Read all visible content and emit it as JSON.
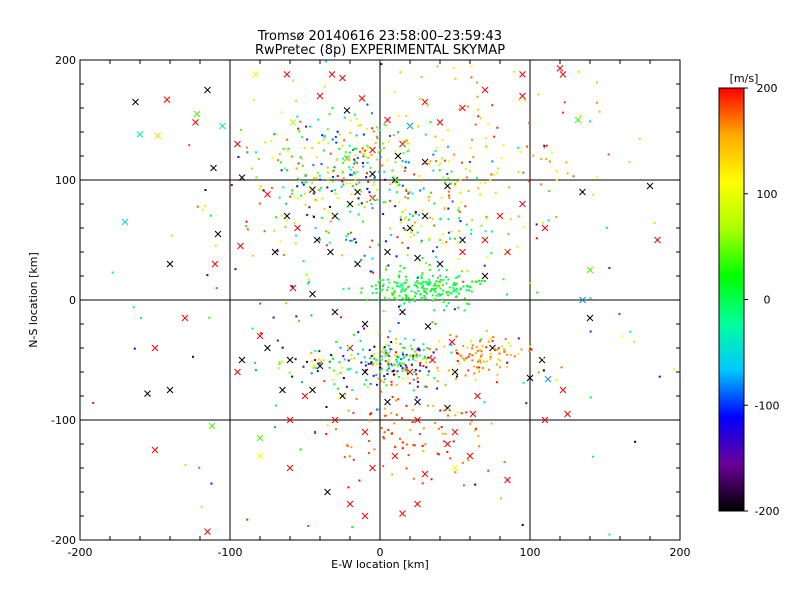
{
  "chart_data": {
    "type": "scatter",
    "title": "Tromsø 20140616 23:58:00–23:59:43",
    "subtitle": "RwPretec (8p) EXPERIMENTAL SKYMAP",
    "xlabel": "E-W location [km]",
    "ylabel": "N-S location [km]",
    "xlim": [
      -200,
      200
    ],
    "ylim": [
      -200,
      200
    ],
    "x_ticks": [
      "-200",
      "-100",
      "0",
      "100",
      "200"
    ],
    "y_ticks": [
      "-200",
      "-100",
      "0",
      "100",
      "200"
    ],
    "grid": true,
    "colorbar": {
      "label": "[m/s]",
      "range": [
        -200,
        200
      ],
      "ticks": [
        "-200",
        "-100",
        "0",
        "100",
        "200"
      ],
      "colormap": [
        "#000000",
        "#6a0096",
        "#0000ff",
        "#00c8ff",
        "#00ff9a",
        "#00ff00",
        "#aaff00",
        "#ffff00",
        "#ffaa00",
        "#ff0000"
      ]
    },
    "markers": {
      "small": "dot",
      "large": "x",
      "unclassified_color": "#000000"
    },
    "series": [
      {
        "marker": "x",
        "points": [
          [
            -163,
            165,
            -195
          ],
          [
            -160,
            138,
            -30
          ],
          [
            -148,
            137,
            130
          ],
          [
            -170,
            65,
            -50
          ],
          [
            -142,
            167,
            200
          ],
          [
            -123,
            148,
            200
          ],
          [
            -115,
            175,
            -195
          ],
          [
            -122,
            155,
            40
          ],
          [
            -111,
            110,
            -195
          ],
          [
            -105,
            145,
            -40
          ],
          [
            -95,
            130,
            200
          ],
          [
            -92,
            102,
            -195
          ],
          [
            -83,
            188,
            100
          ],
          [
            -62,
            188,
            200
          ],
          [
            -58,
            148,
            70
          ],
          [
            -40,
            170,
            200
          ],
          [
            -32,
            188,
            200
          ],
          [
            -25,
            185,
            200
          ],
          [
            -22,
            158,
            -195
          ],
          [
            -12,
            168,
            200
          ],
          [
            -5,
            125,
            200
          ],
          [
            5,
            150,
            200
          ],
          [
            15,
            130,
            200
          ],
          [
            20,
            145,
            -80
          ],
          [
            30,
            165,
            200
          ],
          [
            40,
            148,
            200
          ],
          [
            55,
            160,
            200
          ],
          [
            70,
            175,
            200
          ],
          [
            95,
            170,
            200
          ],
          [
            95,
            188,
            200
          ],
          [
            120,
            193,
            200
          ],
          [
            122,
            188,
            200
          ],
          [
            132,
            150,
            40
          ],
          [
            135,
            90,
            -195
          ],
          [
            180,
            95,
            -195
          ],
          [
            185,
            50,
            200
          ],
          [
            -140,
            30,
            -195
          ],
          [
            -108,
            55,
            -195
          ],
          [
            -110,
            30,
            200
          ],
          [
            -93,
            45,
            200
          ],
          [
            -70,
            40,
            -195
          ],
          [
            -55,
            60,
            200
          ],
          [
            -42,
            50,
            -195
          ],
          [
            -30,
            70,
            -195
          ],
          [
            -20,
            80,
            -195
          ],
          [
            -15,
            90,
            -195
          ],
          [
            -5,
            85,
            200
          ],
          [
            10,
            100,
            -195
          ],
          [
            20,
            60,
            -195
          ],
          [
            30,
            70,
            -195
          ],
          [
            45,
            95,
            -195
          ],
          [
            55,
            50,
            -195
          ],
          [
            70,
            20,
            -195
          ],
          [
            80,
            70,
            200
          ],
          [
            95,
            80,
            200
          ],
          [
            110,
            60,
            200
          ],
          [
            140,
            25,
            40
          ],
          [
            135,
            0,
            -80
          ],
          [
            140,
            -15,
            -195
          ],
          [
            -150,
            -40,
            200
          ],
          [
            -155,
            -78,
            -195
          ],
          [
            -140,
            -75,
            -195
          ],
          [
            -130,
            -15,
            200
          ],
          [
            -95,
            -60,
            200
          ],
          [
            -80,
            -30,
            200
          ],
          [
            -60,
            -50,
            -195
          ],
          [
            -40,
            -55,
            -195
          ],
          [
            -20,
            -40,
            200
          ],
          [
            -10,
            -60,
            -195
          ],
          [
            5,
            -45,
            -30
          ],
          [
            20,
            -60,
            200
          ],
          [
            35,
            -50,
            200
          ],
          [
            50,
            -60,
            -195
          ],
          [
            65,
            -80,
            200
          ],
          [
            75,
            -40,
            -195
          ],
          [
            100,
            -65,
            -195
          ],
          [
            108,
            -50,
            -195
          ],
          [
            112,
            -66,
            -80
          ],
          [
            122,
            -75,
            200
          ],
          [
            110,
            -100,
            200
          ],
          [
            -112,
            -105,
            40
          ],
          [
            -80,
            -115,
            40
          ],
          [
            -60,
            -100,
            200
          ],
          [
            -50,
            -80,
            200
          ],
          [
            -30,
            -100,
            200
          ],
          [
            -10,
            -110,
            200
          ],
          [
            25,
            -100,
            200
          ],
          [
            45,
            -120,
            200
          ],
          [
            60,
            -130,
            200
          ],
          [
            85,
            -150,
            200
          ],
          [
            -80,
            -130,
            110
          ],
          [
            -20,
            -170,
            200
          ],
          [
            -115,
            -193,
            200
          ],
          [
            15,
            -178,
            200
          ],
          [
            -150,
            -125,
            200
          ],
          [
            -35,
            -160,
            -195
          ],
          [
            -10,
            -180,
            200
          ],
          [
            25,
            -170,
            200
          ],
          [
            50,
            -140,
            110
          ],
          [
            125,
            -95,
            200
          ],
          [
            -22,
            118,
            40
          ],
          [
            -5,
            105,
            -195
          ],
          [
            12,
            120,
            -195
          ],
          [
            30,
            115,
            -195
          ],
          [
            -45,
            92,
            -195
          ],
          [
            -62,
            70,
            -195
          ],
          [
            -75,
            88,
            200
          ],
          [
            -33,
            40,
            -195
          ],
          [
            -15,
            30,
            -195
          ],
          [
            5,
            40,
            -195
          ],
          [
            25,
            35,
            -195
          ],
          [
            40,
            30,
            -195
          ],
          [
            55,
            40,
            200
          ],
          [
            70,
            50,
            200
          ],
          [
            85,
            40,
            200
          ],
          [
            -58,
            10,
            200
          ],
          [
            -45,
            5,
            -195
          ],
          [
            -30,
            -10,
            -195
          ],
          [
            -10,
            -20,
            -195
          ],
          [
            15,
            -10,
            -195
          ],
          [
            32,
            -22,
            -195
          ],
          [
            48,
            -35,
            200
          ],
          [
            -75,
            -40,
            -195
          ],
          [
            -92,
            -50,
            -195
          ],
          [
            -65,
            -75,
            -195
          ],
          [
            -45,
            -75,
            -195
          ],
          [
            -25,
            -80,
            -195
          ],
          [
            5,
            -85,
            -195
          ],
          [
            25,
            -85,
            -195
          ],
          [
            45,
            -90,
            -195
          ],
          [
            62,
            -95,
            200
          ],
          [
            -5,
            -140,
            200
          ],
          [
            10,
            -130,
            200
          ],
          [
            30,
            -145,
            200
          ],
          [
            50,
            -110,
            200
          ],
          [
            -60,
            -140,
            200
          ]
        ]
      },
      {
        "marker": "dot",
        "clusters": [
          {
            "cx": 30,
            "cy": 10,
            "sx": 20,
            "sy": 7,
            "n": 200,
            "vmin": -20,
            "vmax": 40
          },
          {
            "cx": 12,
            "cy": -50,
            "sx": 12,
            "sy": 9,
            "n": 130,
            "vmin": -200,
            "vmax": 200
          },
          {
            "cx": -20,
            "cy": -55,
            "sx": 30,
            "sy": 10,
            "n": 110,
            "vmin": -200,
            "vmax": 200
          },
          {
            "cx": 70,
            "cy": -45,
            "sx": 16,
            "sy": 10,
            "n": 90,
            "vmin": 120,
            "vmax": 200
          },
          {
            "cx": 20,
            "cy": -110,
            "sx": 28,
            "sy": 25,
            "n": 110,
            "vmin": 150,
            "vmax": 200
          },
          {
            "cx": -15,
            "cy": 115,
            "sx": 32,
            "sy": 22,
            "n": 200,
            "vmin": -120,
            "vmax": 200
          },
          {
            "cx": 30,
            "cy": 70,
            "sx": 25,
            "sy": 30,
            "n": 140,
            "vmin": -120,
            "vmax": 200
          },
          {
            "cx": -45,
            "cy": 85,
            "sx": 32,
            "sy": 30,
            "n": 120,
            "vmin": -200,
            "vmax": 200
          },
          {
            "cx": 70,
            "cy": 120,
            "sx": 40,
            "sy": 45,
            "n": 110,
            "vmin": 100,
            "vmax": 200
          },
          {
            "cx": 0,
            "cy": 0,
            "sx": 110,
            "sy": 110,
            "n": 150,
            "vmin": -200,
            "vmax": 200
          }
        ]
      }
    ]
  }
}
